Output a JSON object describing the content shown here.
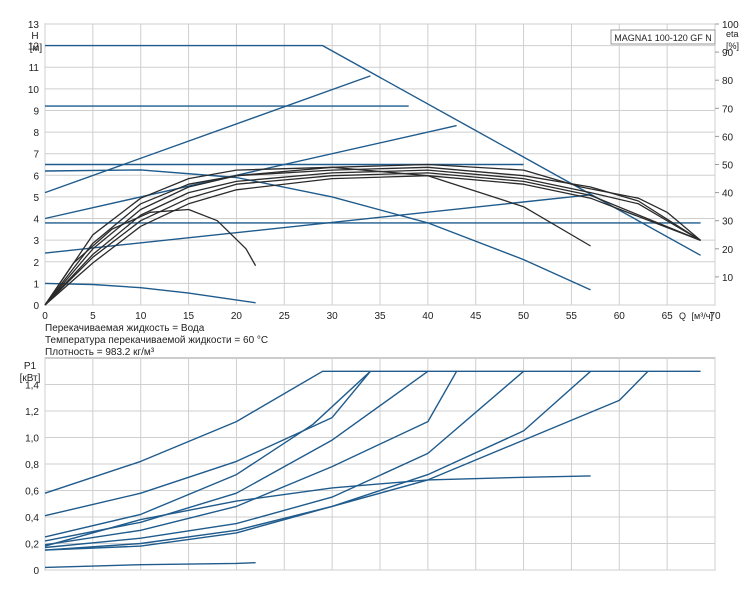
{
  "colors": {
    "blue": "#1f5b8c",
    "black": "#2b2b2b",
    "grid": "#cfcfcf",
    "frame": "#9a9a9a"
  },
  "chart_data": [
    {
      "type": "line",
      "title": "MAGNA1 100-120 GF N",
      "ylabel_top": "H",
      "ylabel_unit": "[м]",
      "y2label_top": "eta",
      "y2label_unit": "[%]",
      "xlabel_prefix": "Q",
      "xlabel_unit": "[м³/ч]",
      "xlim": [
        0,
        70
      ],
      "ylim": [
        0,
        13
      ],
      "y2lim": [
        0,
        100
      ],
      "grid": true,
      "x_ticks": [
        0,
        5,
        10,
        15,
        20,
        25,
        30,
        35,
        40,
        45,
        50,
        55,
        60,
        65,
        70
      ],
      "y_ticks": [
        0,
        1,
        2,
        3,
        4,
        5,
        6,
        7,
        8,
        9,
        10,
        11,
        12,
        13
      ],
      "y2_ticks": [
        10,
        20,
        30,
        40,
        50,
        60,
        70,
        80,
        90,
        100
      ],
      "notes": [
        "Перекачиваемая жидкость = Вода",
        "Температура перекачиваемой жидкости = 60 °C",
        "Плотность = 983.2 кг/м³"
      ],
      "series": [
        {
          "role": "head",
          "values": [
            [
              0,
              12
            ],
            [
              29,
              12
            ],
            [
              68.5,
              2.3
            ]
          ]
        },
        {
          "role": "head",
          "values": [
            [
              0,
              9.2
            ],
            [
              38,
              9.2
            ]
          ]
        },
        {
          "role": "head",
          "values": [
            [
              0,
              6.5
            ],
            [
              50,
              6.5
            ]
          ]
        },
        {
          "role": "head",
          "values": [
            [
              0,
              3.8
            ],
            [
              68.5,
              3.8
            ]
          ]
        },
        {
          "role": "head",
          "values": [
            [
              0,
              5.2
            ],
            [
              34,
              10.6
            ]
          ]
        },
        {
          "role": "head",
          "values": [
            [
              0,
              4.0
            ],
            [
              43,
              8.3
            ]
          ]
        },
        {
          "role": "head",
          "values": [
            [
              0,
              2.4
            ],
            [
              57,
              5.1
            ]
          ]
        },
        {
          "role": "head",
          "values": [
            [
              0,
              6.2
            ],
            [
              10,
              6.25
            ],
            [
              20,
              5.9
            ],
            [
              30,
              5.0
            ],
            [
              40,
              3.8
            ],
            [
              50,
              2.1
            ],
            [
              57,
              0.7
            ]
          ]
        },
        {
          "role": "head",
          "values": [
            [
              0,
              1.0
            ],
            [
              5,
              0.95
            ],
            [
              10,
              0.8
            ],
            [
              15,
              0.55
            ],
            [
              22,
              0.1
            ]
          ]
        },
        {
          "role": "efficiency",
          "values": [
            [
              0,
              0
            ],
            [
              3,
              15
            ],
            [
              7,
              27
            ],
            [
              11,
              33
            ],
            [
              15,
              34
            ],
            [
              18,
              30
            ],
            [
              21,
              20
            ],
            [
              22,
              14
            ]
          ]
        },
        {
          "role": "efficiency",
          "values": [
            [
              0,
              0
            ],
            [
              5,
              25
            ],
            [
              10,
              38
            ],
            [
              15,
              45
            ],
            [
              20,
              48
            ],
            [
              30,
              49
            ],
            [
              40,
              46
            ],
            [
              50,
              35
            ],
            [
              57,
              21
            ]
          ]
        },
        {
          "role": "efficiency",
          "values": [
            [
              0,
              0
            ],
            [
              5,
              22
            ],
            [
              10,
              36
            ],
            [
              15,
              43
            ],
            [
              20,
              46
            ],
            [
              30,
              49
            ],
            [
              40,
              50
            ],
            [
              50,
              48
            ],
            [
              56,
              42
            ],
            [
              62,
              38
            ],
            [
              65,
              33
            ],
            [
              68.5,
              23
            ]
          ]
        },
        {
          "role": "efficiency",
          "values": [
            [
              0,
              0
            ],
            [
              5,
              20
            ],
            [
              10,
              34
            ],
            [
              15,
              42
            ],
            [
              20,
              46
            ],
            [
              30,
              48
            ],
            [
              40,
              49
            ],
            [
              50,
              46
            ],
            [
              57,
              42
            ],
            [
              62,
              37
            ],
            [
              68.5,
              23
            ]
          ]
        },
        {
          "role": "efficiency",
          "values": [
            [
              0,
              0
            ],
            [
              5,
              18
            ],
            [
              10,
              32
            ],
            [
              15,
              40
            ],
            [
              20,
              44
            ],
            [
              30,
              47
            ],
            [
              40,
              48
            ],
            [
              50,
              45
            ],
            [
              57,
              40
            ],
            [
              62,
              36
            ],
            [
              68.5,
              23
            ]
          ]
        },
        {
          "role": "efficiency",
          "values": [
            [
              0,
              0
            ],
            [
              5,
              17
            ],
            [
              10,
              30
            ],
            [
              15,
              38
            ],
            [
              20,
              43
            ],
            [
              30,
              46
            ],
            [
              40,
              47
            ],
            [
              50,
              44
            ],
            [
              57,
              39
            ],
            [
              68.5,
              23
            ]
          ]
        },
        {
          "role": "efficiency",
          "values": [
            [
              0,
              0
            ],
            [
              5,
              15
            ],
            [
              10,
              28
            ],
            [
              15,
              36
            ],
            [
              20,
              41
            ],
            [
              30,
              45
            ],
            [
              40,
              46
            ],
            [
              50,
              43
            ],
            [
              57,
              38
            ],
            [
              68.5,
              23
            ]
          ]
        }
      ]
    },
    {
      "type": "line",
      "ylabel_top": "P1",
      "ylabel_unit": "[кВт]",
      "xlim": [
        0,
        70
      ],
      "ylim": [
        0,
        1.6
      ],
      "grid": true,
      "x_ticks": [
        0,
        5,
        10,
        15,
        20,
        25,
        30,
        35,
        40,
        45,
        50,
        55,
        60,
        65,
        70
      ],
      "y_ticks": [
        "0",
        "0,2",
        "0,4",
        "0,6",
        "0,8",
        "1,0",
        "1,2",
        "1,4"
      ],
      "y_tick_values": [
        0,
        0.2,
        0.4,
        0.6,
        0.8,
        1.0,
        1.2,
        1.4
      ],
      "series": [
        {
          "values": [
            [
              0,
              0.58
            ],
            [
              10,
              0.82
            ],
            [
              20,
              1.12
            ],
            [
              29,
              1.5
            ],
            [
              68.5,
              1.5
            ]
          ]
        },
        {
          "values": [
            [
              0,
              0.41
            ],
            [
              10,
              0.58
            ],
            [
              20,
              0.82
            ],
            [
              30,
              1.15
            ],
            [
              34,
              1.5
            ]
          ]
        },
        {
          "values": [
            [
              0,
              0.25
            ],
            [
              10,
              0.42
            ],
            [
              20,
              0.72
            ],
            [
              28,
              1.1
            ],
            [
              34,
              1.5
            ]
          ]
        },
        {
          "values": [
            [
              0,
              0.22
            ],
            [
              10,
              0.36
            ],
            [
              20,
              0.58
            ],
            [
              30,
              0.98
            ],
            [
              40,
              1.5
            ]
          ]
        },
        {
          "values": [
            [
              0,
              0.19
            ],
            [
              10,
              0.3
            ],
            [
              20,
              0.48
            ],
            [
              30,
              0.78
            ],
            [
              40,
              1.12
            ],
            [
              43,
              1.5
            ]
          ]
        },
        {
          "values": [
            [
              0,
              0.17
            ],
            [
              10,
              0.24
            ],
            [
              20,
              0.35
            ],
            [
              30,
              0.55
            ],
            [
              40,
              0.88
            ],
            [
              50,
              1.5
            ]
          ]
        },
        {
          "values": [
            [
              0,
              0.15
            ],
            [
              10,
              0.2
            ],
            [
              20,
              0.3
            ],
            [
              30,
              0.48
            ],
            [
              40,
              0.72
            ],
            [
              50,
              1.05
            ],
            [
              57,
              1.5
            ]
          ]
        },
        {
          "values": [
            [
              0,
              0.15
            ],
            [
              10,
              0.18
            ],
            [
              20,
              0.28
            ],
            [
              30,
              0.48
            ],
            [
              40,
              0.68
            ],
            [
              50,
              0.98
            ],
            [
              60,
              1.28
            ],
            [
              63,
              1.5
            ]
          ]
        },
        {
          "values": [
            [
              0,
              0.18
            ],
            [
              10,
              0.38
            ],
            [
              20,
              0.52
            ],
            [
              30,
              0.62
            ],
            [
              40,
              0.68
            ],
            [
              50,
              0.7
            ],
            [
              57,
              0.71
            ]
          ]
        },
        {
          "values": [
            [
              0,
              0.02
            ],
            [
              10,
              0.04
            ],
            [
              20,
              0.05
            ],
            [
              22,
              0.055
            ]
          ]
        }
      ]
    }
  ]
}
